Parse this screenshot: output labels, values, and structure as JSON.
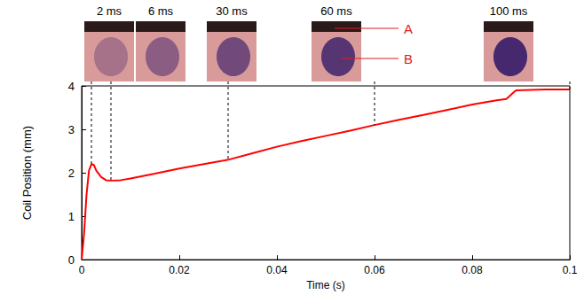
{
  "chart_data": {
    "type": "line",
    "xlabel": "Time (s)",
    "ylabel": "Coil Position (mm)",
    "color": "#ff0000",
    "grid": false,
    "xlim": [
      0,
      0.1
    ],
    "xticks": [
      0,
      0.02,
      0.04,
      0.06,
      0.08,
      0.1
    ],
    "ylim": [
      0,
      4
    ],
    "yticks": [
      0,
      1,
      2,
      3,
      4
    ],
    "x": [
      0,
      0.0005,
      0.001,
      0.0015,
      0.002,
      0.0025,
      0.003,
      0.004,
      0.005,
      0.006,
      0.008,
      0.01,
      0.015,
      0.02,
      0.025,
      0.03,
      0.035,
      0.04,
      0.045,
      0.05,
      0.055,
      0.06,
      0.065,
      0.07,
      0.075,
      0.08,
      0.085,
      0.087,
      0.0885,
      0.089,
      0.095,
      0.1
    ],
    "values": [
      0,
      0.6,
      1.5,
      2.05,
      2.2,
      2.18,
      2.05,
      1.9,
      1.83,
      1.82,
      1.83,
      1.87,
      1.98,
      2.1,
      2.2,
      2.3,
      2.45,
      2.6,
      2.73,
      2.85,
      2.97,
      3.1,
      3.22,
      3.33,
      3.45,
      3.57,
      3.67,
      3.7,
      3.85,
      3.9,
      3.92,
      3.92
    ],
    "snapshots": [
      {
        "time": 0.002,
        "label": "2 ms"
      },
      {
        "time": 0.006,
        "label": "6 ms"
      },
      {
        "time": 0.03,
        "label": "30 ms"
      },
      {
        "time": 0.06,
        "label": "60 ms",
        "annotations": [
          "A",
          "B"
        ]
      },
      {
        "time": 0.1,
        "label": "100 ms"
      }
    ]
  }
}
